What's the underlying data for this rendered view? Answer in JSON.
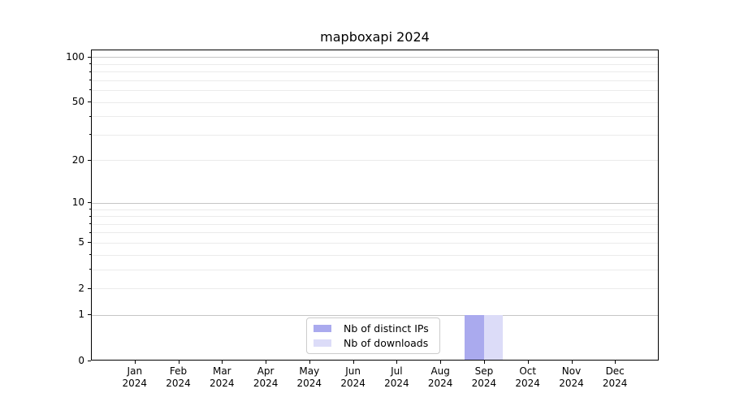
{
  "chart_data": {
    "type": "bar",
    "title": "mapboxapi 2024",
    "xlabel": "",
    "ylabel": "",
    "categories": [
      "Jan 2024",
      "Feb 2024",
      "Mar 2024",
      "Apr 2024",
      "May 2024",
      "Jun 2024",
      "Jul 2024",
      "Aug 2024",
      "Sep 2024",
      "Oct 2024",
      "Nov 2024",
      "Dec 2024"
    ],
    "series": [
      {
        "name": "Nb of distinct IPs",
        "color": "#aaaaee",
        "values": [
          0,
          0,
          0,
          0,
          0,
          0,
          0,
          0,
          1,
          0,
          0,
          0
        ]
      },
      {
        "name": "Nb of downloads",
        "color": "#dcdcf8",
        "values": [
          0,
          0,
          0,
          0,
          0,
          0,
          0,
          0,
          1,
          0,
          0,
          0
        ]
      }
    ],
    "yscale": "log1p",
    "ylim": [
      0,
      112
    ],
    "y_ticks": [
      0,
      1,
      2,
      5,
      10,
      20,
      50,
      100
    ],
    "y_major_gridlines": [
      1,
      10,
      100
    ],
    "y_minor_gridlines": [
      2,
      3,
      4,
      5,
      6,
      7,
      8,
      9,
      20,
      30,
      40,
      50,
      60,
      70,
      80,
      90
    ],
    "grid": "horizontal",
    "legend_position": "lower center",
    "colors": {
      "major_grid": "#c6c6c6",
      "minor_grid": "#ebebeb",
      "axis": "#000000",
      "background": "#ffffff",
      "text": "#000000"
    }
  }
}
